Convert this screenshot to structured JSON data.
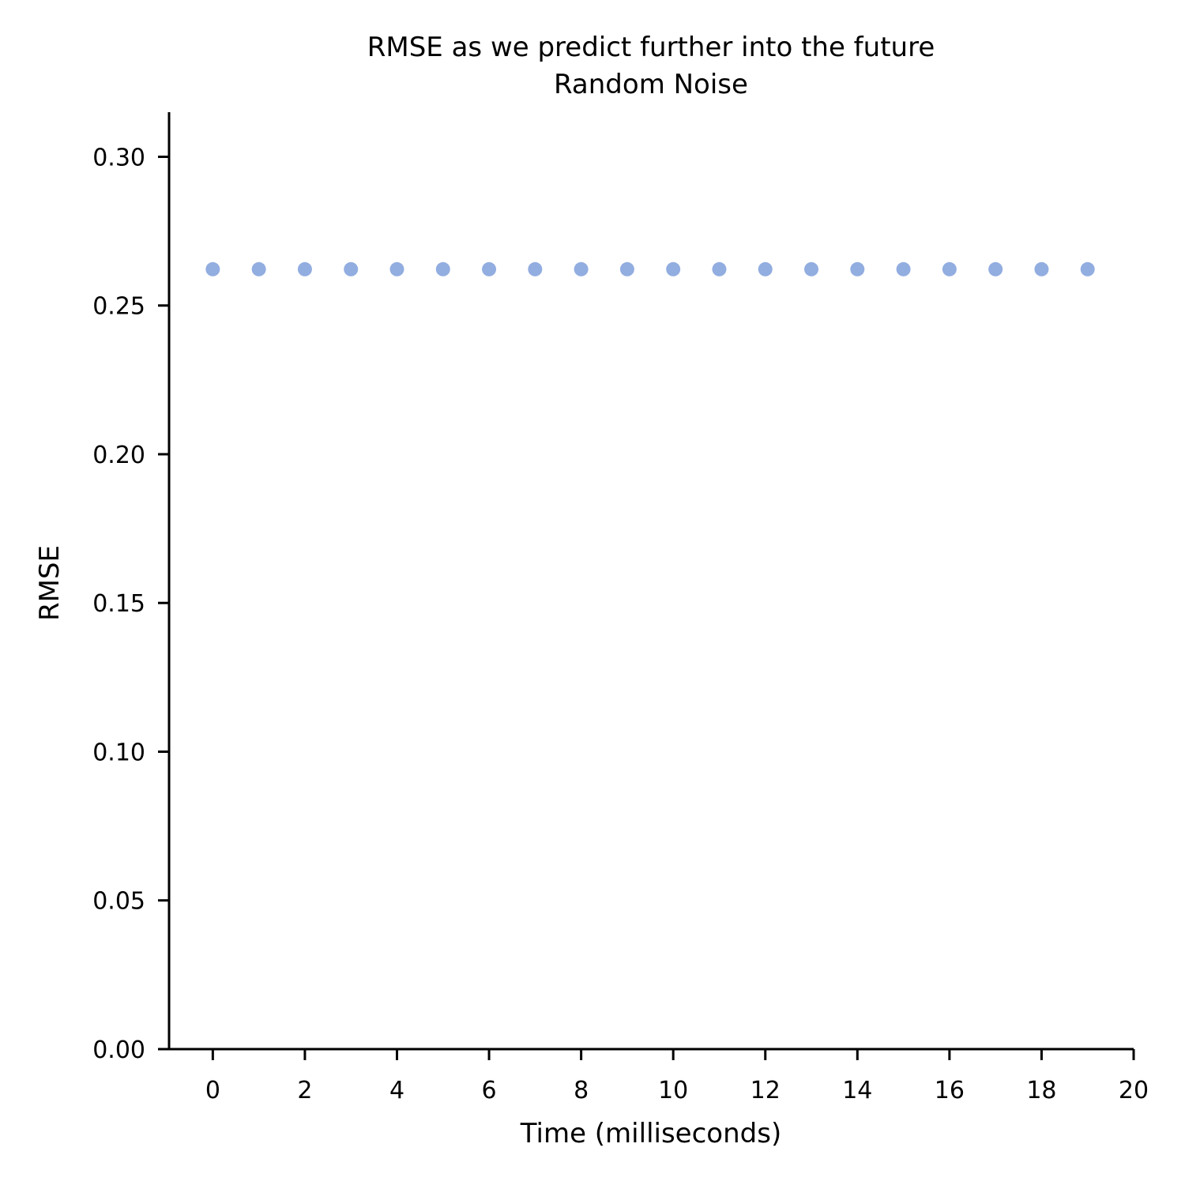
{
  "chart_data": {
    "type": "scatter",
    "title": "RMSE as we predict further into the future",
    "subtitle": "Random Noise",
    "xlabel": "Time (milliseconds)",
    "ylabel": "RMSE",
    "xlim": [
      -0.95,
      20
    ],
    "ylim": [
      0,
      0.315
    ],
    "x_ticks": [
      0,
      2,
      4,
      6,
      8,
      10,
      12,
      14,
      16,
      18,
      20
    ],
    "x_tick_labels": [
      "0",
      "2",
      "4",
      "6",
      "8",
      "10",
      "12",
      "14",
      "16",
      "18",
      "20"
    ],
    "y_ticks": [
      0,
      0.05,
      0.1,
      0.15,
      0.2,
      0.25,
      0.3
    ],
    "y_tick_labels": [
      "0.00",
      "0.05",
      "0.10",
      "0.15",
      "0.20",
      "0.25",
      "0.30"
    ],
    "grid": false,
    "marker_color": "#92ADE0",
    "series": [
      {
        "x": [
          0,
          1,
          2,
          3,
          4,
          5,
          6,
          7,
          8,
          9,
          10,
          11,
          12,
          13,
          14,
          15,
          16,
          17,
          18,
          19
        ],
        "y": [
          0.2622,
          0.2622,
          0.2622,
          0.2622,
          0.2622,
          0.2622,
          0.2622,
          0.2622,
          0.2622,
          0.2622,
          0.2622,
          0.2622,
          0.2622,
          0.2622,
          0.2622,
          0.2622,
          0.2622,
          0.2622,
          0.2622,
          0.2622
        ]
      }
    ]
  }
}
